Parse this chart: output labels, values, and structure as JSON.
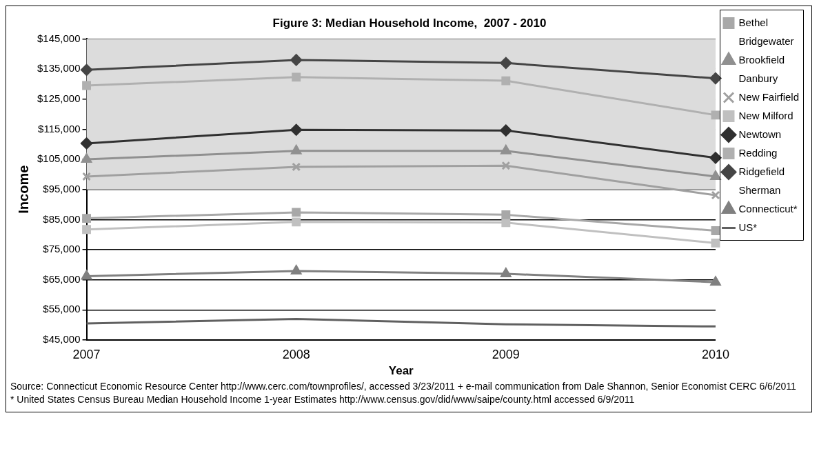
{
  "chart_data": {
    "type": "line",
    "title": "Figure 3: Median Household Income,  2007 - 2010",
    "xlabel": "Year",
    "ylabel": "Income",
    "categories": [
      "2007",
      "2008",
      "2009",
      "2010"
    ],
    "series": [
      {
        "name": "Bethel",
        "color": "#a8a8a8",
        "marker": "square",
        "values": [
          85400,
          87400,
          86600,
          81300
        ]
      },
      {
        "name": "Bridgewater",
        "values": [
          null,
          null,
          null,
          null
        ]
      },
      {
        "name": "Brookfield",
        "color": "#909090",
        "marker": "triangle",
        "values": [
          105000,
          107800,
          107800,
          99300
        ]
      },
      {
        "name": "Danbury",
        "values": [
          null,
          null,
          null,
          null
        ]
      },
      {
        "name": "New Fairfield",
        "color": "#a0a0a0",
        "marker": "cross",
        "values": [
          99300,
          102500,
          102900,
          93100
        ]
      },
      {
        "name": "New Milford",
        "color": "#c0c0c0",
        "marker": "square",
        "values": [
          81700,
          84200,
          84000,
          77200
        ]
      },
      {
        "name": "Newtown",
        "color": "#303030",
        "marker": "diamond",
        "values": [
          110300,
          114800,
          114600,
          105500
        ]
      },
      {
        "name": "Redding",
        "color": "#b0b0b0",
        "marker": "square",
        "values": [
          129500,
          132300,
          131100,
          119700
        ]
      },
      {
        "name": "Ridgefield",
        "color": "#454545",
        "marker": "diamond",
        "values": [
          134700,
          138000,
          137000,
          131900
        ]
      },
      {
        "name": "Sherman",
        "values": [
          null,
          null,
          null,
          null
        ]
      },
      {
        "name": "Connecticut*",
        "color": "#808080",
        "marker": "triangle",
        "values": [
          66200,
          67900,
          67000,
          64200
        ]
      },
      {
        "name": "US*",
        "color": "#606060",
        "marker": "none",
        "values": [
          50500,
          52000,
          50200,
          49500
        ]
      }
    ],
    "ylim": [
      45000,
      145000
    ],
    "yticks": [
      {
        "value": 45000,
        "label": "$45,000"
      },
      {
        "value": 55000,
        "label": "$55,000"
      },
      {
        "value": 65000,
        "label": "$65,000"
      },
      {
        "value": 75000,
        "label": "$75,000"
      },
      {
        "value": 85000,
        "label": "$85,000"
      },
      {
        "value": 95000,
        "label": "$95,000"
      },
      {
        "value": 105000,
        "label": "$105,000"
      },
      {
        "value": 115000,
        "label": "$115,000"
      },
      {
        "value": 125000,
        "label": "$125,000"
      },
      {
        "value": 135000,
        "label": "$135,000"
      },
      {
        "value": 145000,
        "label": "$145,000"
      }
    ],
    "bands": [
      {
        "axis": "y",
        "from": 95000,
        "to": 145000,
        "color": "#dcdcdc"
      }
    ],
    "grid": "y",
    "legend": "right",
    "annotations": [
      "Source: Connecticut Economic Resource Center  http://www.cerc.com/townprofiles/,   accessed 3/23/2011 + e-mail communication from Dale Shannon, Senior Economist CERC 6/6/2011",
      "* United States Census Bureau Median Household  Income 1-year Estimates  http://www.census.gov/did/www/saipe/county.html accessed 6/9/2011"
    ]
  }
}
